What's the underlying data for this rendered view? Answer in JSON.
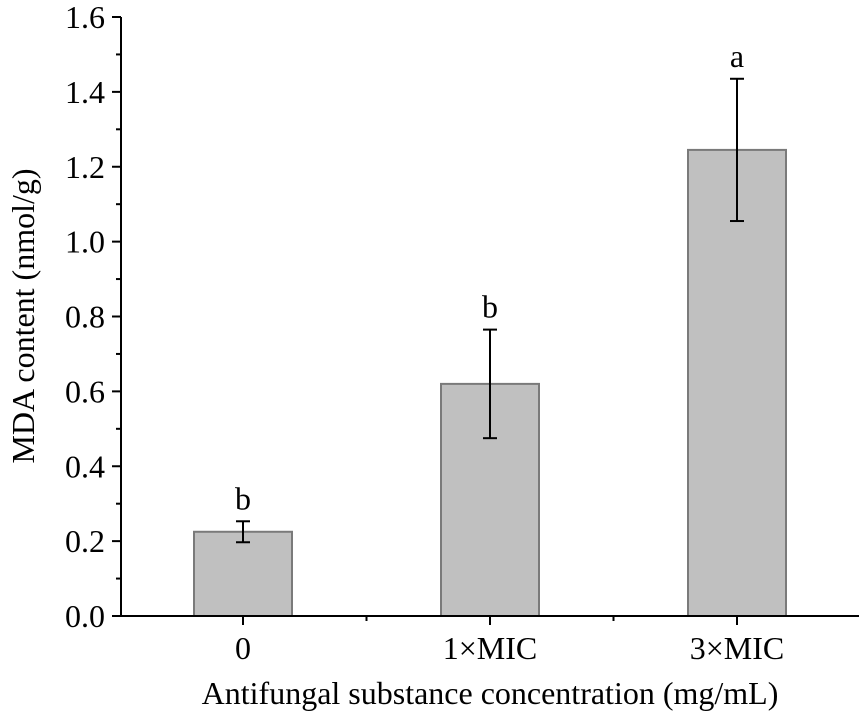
{
  "chart_data": {
    "type": "bar",
    "categories": [
      "0",
      "1×MIC",
      "3×MIC"
    ],
    "values": [
      0.225,
      0.62,
      1.245
    ],
    "errors": [
      0.028,
      0.145,
      0.19
    ],
    "significance": [
      "b",
      "b",
      "a"
    ],
    "xlabel": "Antifungal substance concentration (mg/mL)",
    "ylabel": "MDA content (nmol/g)",
    "ylim": [
      0.0,
      1.6
    ],
    "yticks": [
      "0.0",
      "0.2",
      "0.4",
      "0.6",
      "0.8",
      "1.0",
      "1.2",
      "1.4",
      "1.6"
    ],
    "grid": false,
    "bar_color": "#c0c0c0",
    "bar_edge_color": "#7a7a7a"
  }
}
